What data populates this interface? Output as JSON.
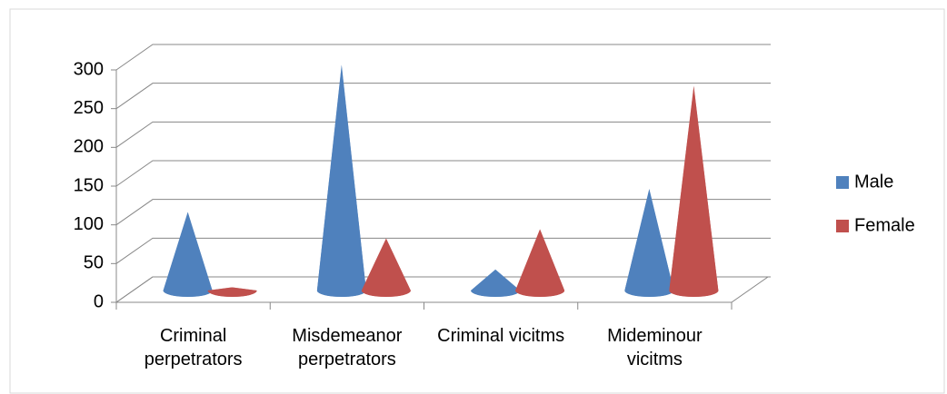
{
  "chart_data": {
    "type": "cone3d",
    "categories": [
      "Criminal perpetrators",
      "Misdemeanor perpetrators",
      "Criminal vicitms",
      "Mideminour vicitms"
    ],
    "series": [
      {
        "name": "Male",
        "color": "#4f81bd",
        "values": [
          100,
          290,
          26,
          130
        ]
      },
      {
        "name": "Female",
        "color": "#c0504d",
        "values": [
          3,
          66,
          78,
          263
        ]
      }
    ],
    "ylim": [
      0,
      300
    ],
    "yticks": [
      0,
      50,
      100,
      150,
      200,
      250,
      300
    ],
    "grid": true,
    "legend": "right"
  }
}
